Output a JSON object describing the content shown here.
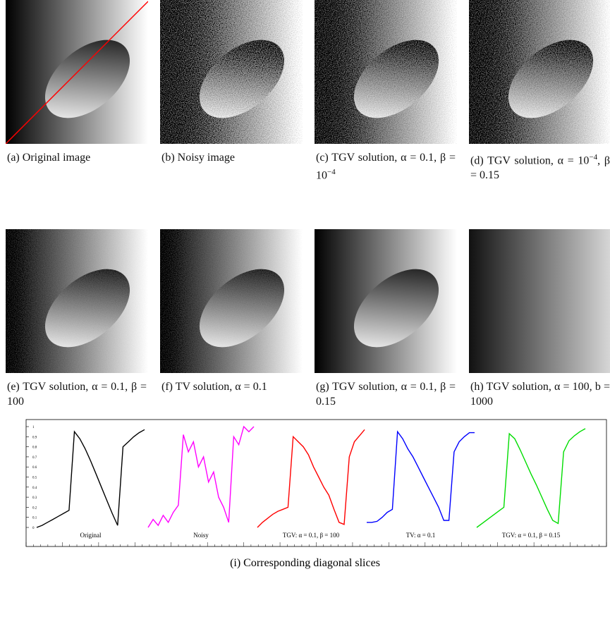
{
  "figures": [
    {
      "caption": [
        "(a) Original image"
      ]
    },
    {
      "caption": [
        "(b) Noisy image"
      ]
    },
    {
      "caption": [
        "(c) TGV solution, α = 0.1, β = 10",
        {
          "sup": "−4"
        }
      ]
    },
    {
      "caption": [
        "(d) TGV solution, α = 10",
        {
          "sup": "−4"
        },
        ", β = 0.15"
      ]
    },
    {
      "caption": [
        "(e) TGV solution, α = 0.1, β = 100"
      ]
    },
    {
      "caption": [
        "(f) TV solution, α = 0.1"
      ]
    },
    {
      "caption": [
        "(g) TGV solution, α = 0.1, β = 0.15"
      ]
    },
    {
      "caption": [
        "(h) TGV solution, α = 100, b = 1000"
      ]
    }
  ],
  "slices": {
    "type": "line",
    "ylim": [
      0,
      1
    ],
    "yticks": [
      0,
      0.1,
      0.2,
      0.3,
      0.4,
      0.5,
      0.6,
      0.7,
      0.8,
      0.9,
      1
    ],
    "caption": "(i) Corresponding diagonal slices",
    "series": [
      {
        "name": "Original",
        "color": "#000000",
        "values": [
          0,
          0.02,
          0.05,
          0.08,
          0.11,
          0.14,
          0.17,
          0.95,
          0.88,
          0.78,
          0.66,
          0.53,
          0.4,
          0.27,
          0.14,
          0.02,
          0.8,
          0.85,
          0.9,
          0.94,
          0.97
        ]
      },
      {
        "name": "Noisy",
        "color": "#ff00ff",
        "values": [
          0,
          0.08,
          0.02,
          0.12,
          0.05,
          0.15,
          0.22,
          0.92,
          0.75,
          0.85,
          0.6,
          0.7,
          0.45,
          0.55,
          0.3,
          0.2,
          0.05,
          0.9,
          0.82,
          1,
          0.95,
          1
        ]
      },
      {
        "name": "TGV: α = 0.1, β = 100",
        "color": "#ff0000",
        "values": [
          0,
          0.05,
          0.09,
          0.13,
          0.16,
          0.18,
          0.2,
          0.9,
          0.85,
          0.8,
          0.72,
          0.6,
          0.5,
          0.4,
          0.32,
          0.18,
          0.05,
          0.03,
          0.7,
          0.85,
          0.91,
          0.97
        ]
      },
      {
        "name": "TV: α = 0.1",
        "color": "#0000ff",
        "values": [
          0.05,
          0.05,
          0.06,
          0.1,
          0.15,
          0.18,
          0.95,
          0.88,
          0.78,
          0.7,
          0.6,
          0.5,
          0.4,
          0.3,
          0.2,
          0.07,
          0.07,
          0.75,
          0.85,
          0.9,
          0.94,
          0.94
        ]
      },
      {
        "name": "TGV: α = 0.1, β = 0.15",
        "color": "#00dd00",
        "values": [
          0,
          0.04,
          0.08,
          0.12,
          0.16,
          0.2,
          0.93,
          0.88,
          0.77,
          0.65,
          0.53,
          0.42,
          0.3,
          0.18,
          0.07,
          0.04,
          0.75,
          0.86,
          0.91,
          0.95,
          0.98
        ]
      }
    ]
  }
}
